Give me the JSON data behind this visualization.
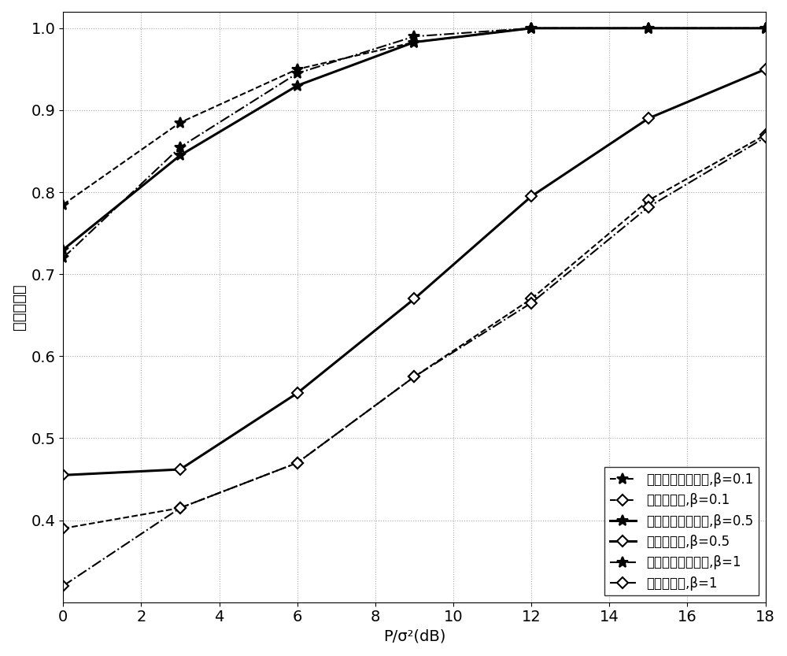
{
  "x": [
    0,
    3,
    6,
    9,
    12,
    15,
    18
  ],
  "series": [
    {
      "label": "所设计预编码方案,β=0.1",
      "y": [
        0.785,
        0.885,
        0.95,
        0.983,
        1.0,
        1.0,
        1.0
      ],
      "linestyle": "--",
      "marker": "*",
      "linewidth": 1.5,
      "color": "#000000",
      "markersize": 10
    },
    {
      "label": "迫零预编码,β=0.1",
      "y": [
        0.39,
        0.415,
        0.47,
        0.575,
        0.67,
        0.79,
        0.87
      ],
      "linestyle": "--",
      "marker": "D",
      "linewidth": 1.5,
      "color": "#000000",
      "markersize": 7
    },
    {
      "label": "所设计预编码方案,β=0.5",
      "y": [
        0.73,
        0.845,
        0.93,
        0.983,
        1.0,
        1.0,
        1.0
      ],
      "linestyle": "-",
      "marker": "*",
      "linewidth": 2.2,
      "color": "#000000",
      "markersize": 10
    },
    {
      "label": "迫零预编码,β=0.5",
      "y": [
        0.455,
        0.462,
        0.555,
        0.67,
        0.795,
        0.89,
        0.95
      ],
      "linestyle": "-",
      "marker": "D",
      "linewidth": 2.2,
      "color": "#000000",
      "markersize": 7
    },
    {
      "label": "所设计预编码方案,β=1",
      "y": [
        0.72,
        0.855,
        0.945,
        0.99,
        1.0,
        1.0,
        1.0
      ],
      "linestyle": "-.",
      "marker": "*",
      "linewidth": 1.5,
      "color": "#000000",
      "markersize": 10
    },
    {
      "label": "迫零预编码,β=1",
      "y": [
        0.32,
        0.415,
        0.47,
        0.575,
        0.665,
        0.782,
        0.867
      ],
      "linestyle": "-.",
      "marker": "D",
      "linewidth": 1.5,
      "color": "#000000",
      "markersize": 7
    }
  ],
  "xlabel": "P/σ²(dB)",
  "ylabel": "归一化容量",
  "xlim": [
    0,
    18
  ],
  "ylim": [
    0.3,
    1.02
  ],
  "xticks": [
    0,
    2,
    4,
    6,
    8,
    10,
    12,
    14,
    16,
    18
  ],
  "yticks": [
    0.4,
    0.5,
    0.6,
    0.7,
    0.8,
    0.9,
    1.0
  ],
  "grid": true,
  "legend_loc": "lower right",
  "background_color": "#ffffff",
  "font_size": 14
}
